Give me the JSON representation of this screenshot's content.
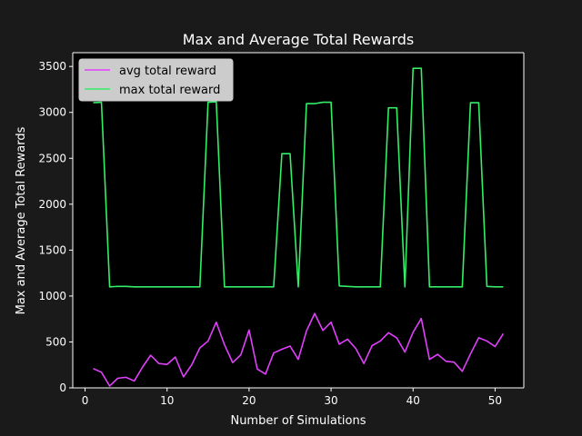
{
  "chart_data": {
    "type": "line",
    "title": "Max and Average Total Rewards",
    "xlabel": "Number of Simulations",
    "ylabel": "Max and Average Total Rewards",
    "xlim": [
      -1.5,
      53.5
    ],
    "ylim": [
      0,
      3650
    ],
    "xticks": [
      0,
      10,
      20,
      30,
      40,
      50
    ],
    "yticks": [
      0,
      500,
      1000,
      1500,
      2000,
      2500,
      3000,
      3500
    ],
    "grid": false,
    "legend_position": "top-left",
    "x": [
      1,
      2,
      3,
      4,
      5,
      6,
      7,
      8,
      9,
      10,
      11,
      12,
      13,
      14,
      15,
      16,
      17,
      18,
      19,
      20,
      21,
      22,
      23,
      24,
      25,
      26,
      27,
      28,
      29,
      30,
      31,
      32,
      33,
      34,
      35,
      36,
      37,
      38,
      39,
      40,
      41,
      42,
      43,
      44,
      45,
      46,
      47,
      48,
      49,
      50,
      51
    ],
    "series": [
      {
        "name": "avg total reward",
        "color": "#e040fb",
        "values": [
          210,
          170,
          20,
          105,
          115,
          75,
          225,
          355,
          265,
          255,
          335,
          120,
          250,
          435,
          510,
          715,
          470,
          275,
          360,
          630,
          205,
          150,
          380,
          420,
          455,
          310,
          620,
          810,
          625,
          715,
          475,
          530,
          430,
          265,
          460,
          510,
          600,
          545,
          390,
          605,
          755,
          310,
          365,
          290,
          280,
          180,
          370,
          545,
          510,
          450,
          590
        ]
      },
      {
        "name": "max total reward",
        "color": "#33ee66",
        "values": [
          3105,
          3110,
          1100,
          1105,
          1105,
          1100,
          1100,
          1100,
          1100,
          1100,
          1100,
          1100,
          1100,
          1100,
          3110,
          3115,
          1100,
          1100,
          1100,
          1100,
          1100,
          1100,
          1100,
          2550,
          2550,
          1100,
          3095,
          3095,
          3110,
          3110,
          1110,
          1105,
          1100,
          1100,
          1100,
          1100,
          3050,
          3050,
          1100,
          3480,
          3480,
          1100,
          1100,
          1100,
          1100,
          1100,
          3105,
          3105,
          1105,
          1100,
          1100
        ]
      }
    ]
  }
}
